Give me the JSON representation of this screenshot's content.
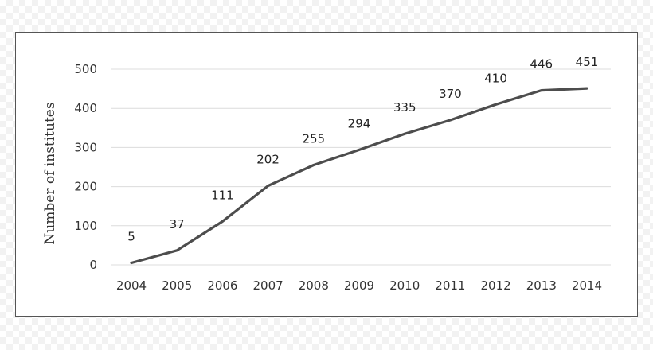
{
  "chart_data": {
    "type": "line",
    "x": [
      "2004",
      "2005",
      "2006",
      "2007",
      "2008",
      "2009",
      "2010",
      "2011",
      "2012",
      "2013",
      "2014"
    ],
    "series": [
      {
        "values": [
          5,
          37,
          111,
          202,
          255,
          294,
          335,
          370,
          410,
          446,
          451
        ]
      }
    ],
    "data_labels": [
      "5",
      "37",
      "111",
      "202",
      "255",
      "294",
      "335",
      "370",
      "410",
      "446",
      "451"
    ],
    "y_ticks": [
      "0",
      "100",
      "200",
      "300",
      "400",
      "500"
    ],
    "ylabel": "Number of institutes",
    "xlabel": "",
    "ylim": [
      0,
      500
    ],
    "grid": "horizontal",
    "line_color": "#4d4d4d",
    "grid_color": "#dcdcdc"
  }
}
